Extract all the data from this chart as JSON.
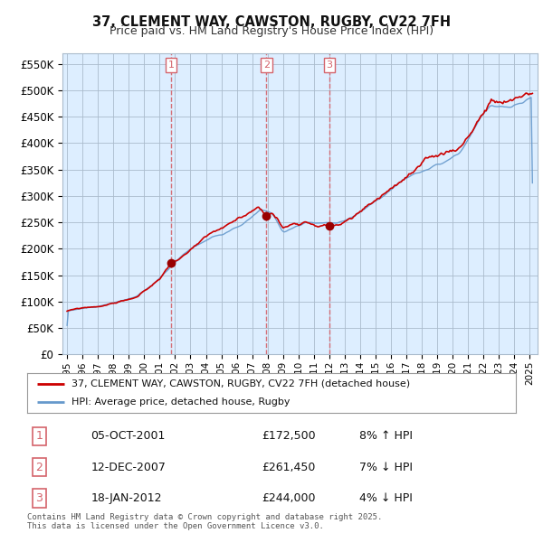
{
  "title": "37, CLEMENT WAY, CAWSTON, RUGBY, CV22 7FH",
  "subtitle": "Price paid vs. HM Land Registry's House Price Index (HPI)",
  "ylabel_ticks": [
    "£0",
    "£50K",
    "£100K",
    "£150K",
    "£200K",
    "£250K",
    "£300K",
    "£350K",
    "£400K",
    "£450K",
    "£500K",
    "£550K"
  ],
  "ytick_values": [
    0,
    50000,
    100000,
    150000,
    200000,
    250000,
    300000,
    350000,
    400000,
    450000,
    500000,
    550000
  ],
  "ylim": [
    0,
    570000
  ],
  "sale_prices": [
    172500,
    261450,
    244000
  ],
  "sale_labels": [
    "1",
    "2",
    "3"
  ],
  "vline_color": "#d4636b",
  "red_line_color": "#cc0000",
  "blue_line_color": "#6699cc",
  "chart_bg_color": "#ddeeff",
  "dot_color": "#990000",
  "background_color": "#ffffff",
  "grid_color": "#aabbcc",
  "legend_label_red": "37, CLEMENT WAY, CAWSTON, RUGBY, CV22 7FH (detached house)",
  "legend_label_blue": "HPI: Average price, detached house, Rugby",
  "table_rows": [
    {
      "num": "1",
      "date": "05-OCT-2001",
      "price": "£172,500",
      "change": "8% ↑ HPI"
    },
    {
      "num": "2",
      "date": "12-DEC-2007",
      "price": "£261,450",
      "change": "7% ↓ HPI"
    },
    {
      "num": "3",
      "date": "18-JAN-2012",
      "price": "£244,000",
      "change": "4% ↓ HPI"
    }
  ],
  "footnote": "Contains HM Land Registry data © Crown copyright and database right 2025.\nThis data is licensed under the Open Government Licence v3.0.",
  "x_start_year": 1995,
  "x_end_year": 2025
}
